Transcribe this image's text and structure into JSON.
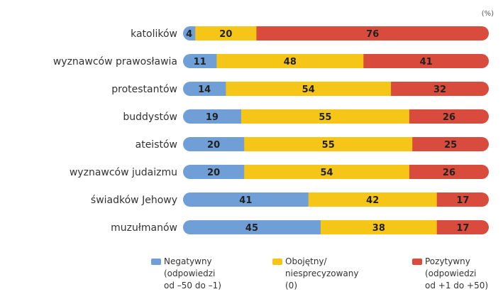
{
  "chart_data": {
    "type": "bar",
    "orientation": "horizontal",
    "stacked": true,
    "unit": "(%)",
    "categories": [
      "katolików",
      "wyznawców prawosławia",
      "protestantów",
      "buddystów",
      "ateistów",
      "wyznawców judaizmu",
      "świadków Jehowy",
      "muzułmanów"
    ],
    "series": [
      {
        "name": "Negatywny (odpowiedzi od -50 do -1)",
        "color": "#6f9fd6",
        "values": [
          4,
          11,
          14,
          19,
          20,
          20,
          41,
          45
        ]
      },
      {
        "name": "Obojętny/ niesprecyzowany (0)",
        "color": "#f5c518",
        "values": [
          20,
          48,
          54,
          55,
          55,
          54,
          42,
          38
        ]
      },
      {
        "name": "Pozytywny (odpowiedzi od +1 do +50)",
        "color": "#d94c3d",
        "values": [
          76,
          41,
          32,
          26,
          25,
          26,
          17,
          17
        ]
      }
    ],
    "xlim": [
      0,
      100
    ],
    "legend_position": "bottom"
  },
  "legend": [
    {
      "lines": [
        "Negatywny",
        "(odpowiedzi",
        "od –50 do –1)"
      ],
      "color": "#6f9fd6"
    },
    {
      "lines": [
        "Obojętny/",
        "niesprecyzowany",
        "(0)"
      ],
      "color": "#f5c518"
    },
    {
      "lines": [
        "Pozytywny",
        "(odpowiedzi",
        "od +1 do +50)"
      ],
      "color": "#d94c3d"
    }
  ]
}
